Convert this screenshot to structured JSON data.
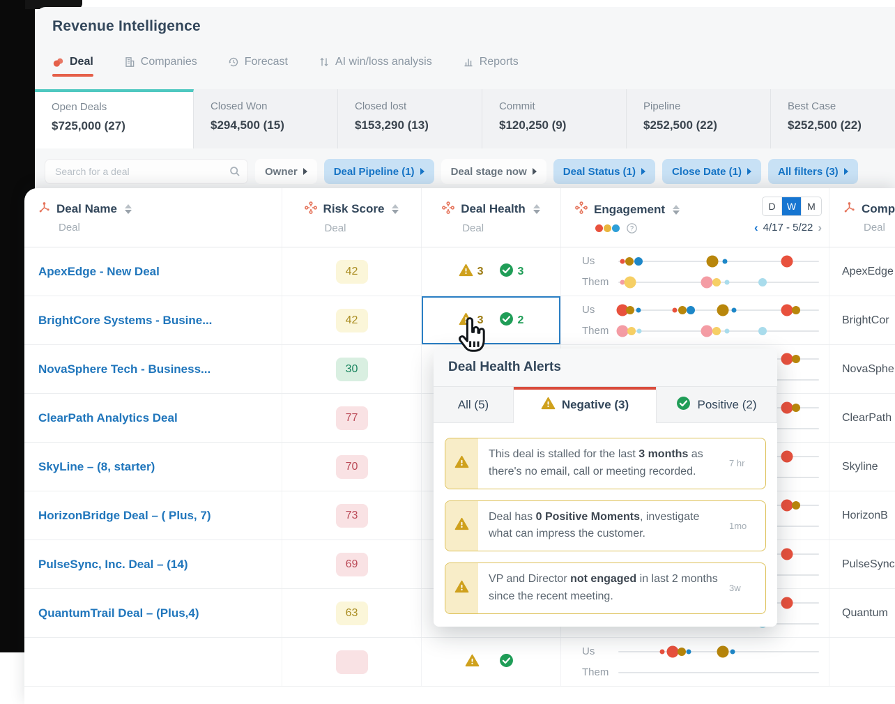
{
  "window": {
    "title": "Revenue Intelligence"
  },
  "nav": {
    "tabs": [
      {
        "label": "Deal",
        "icon": "deal-icon",
        "active": true
      },
      {
        "label": "Companies",
        "icon": "companies-icon",
        "active": false
      },
      {
        "label": "Forecast",
        "icon": "forecast-icon",
        "active": false
      },
      {
        "label": "AI win/loss analysis",
        "icon": "ai-analysis-icon",
        "active": false
      },
      {
        "label": "Reports",
        "icon": "reports-icon",
        "active": false
      }
    ]
  },
  "summary_cards": [
    {
      "label": "Open Deals",
      "value": "$725,000 (27)",
      "active": true
    },
    {
      "label": "Closed Won",
      "value": "$294,500 (15)",
      "active": false
    },
    {
      "label": "Closed lost",
      "value": "$153,290 (13)",
      "active": false
    },
    {
      "label": "Commit",
      "value": "$120,250 (9)",
      "active": false
    },
    {
      "label": "Pipeline",
      "value": "$252,500 (22)",
      "active": false
    },
    {
      "label": "Best Case",
      "value": "$252,500 (22)",
      "active": false
    }
  ],
  "filters": {
    "search_placeholder": "Search for a deal",
    "chips": [
      {
        "label": "Owner",
        "active": false
      },
      {
        "label": "Deal Pipeline (1)",
        "active": true
      },
      {
        "label": "Deal stage now",
        "active": false
      },
      {
        "label": "Deal Status (1)",
        "active": true
      },
      {
        "label": "Close Date (1)",
        "active": true
      },
      {
        "label": "All filters (3)",
        "active": true
      }
    ]
  },
  "table": {
    "columns": [
      {
        "title": "Deal Name",
        "sub": "Deal",
        "icon": "sprocket-icon"
      },
      {
        "title": "Risk Score",
        "sub": "Deal",
        "icon": "node-plus-icon"
      },
      {
        "title": "Deal Health",
        "sub": "Deal",
        "icon": "node-plus-icon"
      },
      {
        "title": "Engagement",
        "icon": "node-plus-icon"
      },
      {
        "title": "Comp",
        "sub": "Deal",
        "icon": "sprocket-icon"
      }
    ],
    "engagement": {
      "view_toggle": [
        "D",
        "W",
        "M"
      ],
      "view_active": "W",
      "date_range": "4/17 - 5/22",
      "us_label": "Us",
      "them_label": "Them"
    },
    "rows": [
      {
        "name": "ApexEdge - New Deal",
        "risk": {
          "value": "42",
          "level": "yellow"
        },
        "health": {
          "neg": "3",
          "pos": "3",
          "selected": false
        },
        "company": "ApexEdge",
        "us": [
          [
            0.02,
            "red",
            "s"
          ],
          [
            0.055,
            "olive",
            "m"
          ],
          [
            0.1,
            "blue",
            "m"
          ],
          [
            0.47,
            "olive",
            "l"
          ],
          [
            0.53,
            "blue",
            "s"
          ],
          [
            0.84,
            "red",
            "l"
          ]
        ],
        "them": [
          [
            0.02,
            "pink",
            "s"
          ],
          [
            0.06,
            "yellow",
            "l"
          ],
          [
            0.44,
            "pink",
            "l"
          ],
          [
            0.49,
            "yellow",
            "m"
          ],
          [
            0.54,
            "lightblue",
            "s"
          ],
          [
            0.72,
            "lightblue",
            "m"
          ]
        ]
      },
      {
        "name": "BrightCore Systems - Busine...",
        "risk": {
          "value": "42",
          "level": "yellow"
        },
        "health": {
          "neg": "3",
          "pos": "2",
          "selected": true
        },
        "company": "BrightCor",
        "us": [
          [
            0.02,
            "red",
            "l"
          ],
          [
            0.06,
            "olive",
            "m"
          ],
          [
            0.1,
            "blue",
            "s"
          ],
          [
            0.28,
            "red",
            "s"
          ],
          [
            0.32,
            "olive",
            "m"
          ],
          [
            0.36,
            "blue",
            "m"
          ],
          [
            0.52,
            "olive",
            "l"
          ],
          [
            0.575,
            "blue",
            "s"
          ],
          [
            0.84,
            "red",
            "l"
          ],
          [
            0.885,
            "olive",
            "m"
          ]
        ],
        "them": [
          [
            0.02,
            "pink",
            "l"
          ],
          [
            0.065,
            "yellow",
            "m"
          ],
          [
            0.105,
            "lightblue",
            "s"
          ],
          [
            0.44,
            "pink",
            "l"
          ],
          [
            0.49,
            "yellow",
            "m"
          ],
          [
            0.54,
            "lightblue",
            "s"
          ],
          [
            0.72,
            "lightblue",
            "m"
          ]
        ]
      },
      {
        "name": "NovaSphere Tech - Business...",
        "risk": {
          "value": "30",
          "level": "green"
        },
        "health": null,
        "company": "NovaSphe",
        "us": [
          [
            0.84,
            "red",
            "l"
          ],
          [
            0.885,
            "olive",
            "m"
          ]
        ],
        "them": []
      },
      {
        "name": "ClearPath Analytics Deal",
        "risk": {
          "value": "77",
          "level": "red"
        },
        "health": null,
        "company": "ClearPath",
        "us": [
          [
            0.84,
            "red",
            "l"
          ],
          [
            0.885,
            "olive",
            "m"
          ]
        ],
        "them": []
      },
      {
        "name": "SkyLine – (8, starter)",
        "risk": {
          "value": "70",
          "level": "red"
        },
        "health": null,
        "company": "Skyline",
        "us": [
          [
            0.84,
            "red",
            "l"
          ]
        ],
        "them": []
      },
      {
        "name": "HorizonBridge Deal – ( Plus, 7)",
        "risk": {
          "value": "73",
          "level": "red"
        },
        "health": null,
        "company": "HorizonB",
        "us": [
          [
            0.84,
            "red",
            "l"
          ],
          [
            0.885,
            "olive",
            "m"
          ]
        ],
        "them": []
      },
      {
        "name": "PulseSync, Inc. Deal – (14)",
        "risk": {
          "value": "69",
          "level": "red"
        },
        "health": null,
        "company": "PulseSync",
        "us": [
          [
            0.84,
            "red",
            "l"
          ]
        ],
        "them": []
      },
      {
        "name": "QuantumTrail Deal – (Plus,4)",
        "risk": {
          "value": "63",
          "level": "yellow"
        },
        "health": null,
        "company": "Quantum",
        "us": [
          [
            0.84,
            "red",
            "l"
          ]
        ],
        "them": [
          [
            0.72,
            "lightblue",
            "m"
          ]
        ]
      },
      {
        "name": "",
        "risk": {
          "value": "",
          "level": "red"
        },
        "health": {
          "neg": "",
          "pos": "",
          "selected": false
        },
        "company": "",
        "us": [
          [
            0.27,
            "red",
            "l"
          ],
          [
            0.315,
            "olive",
            "m"
          ],
          [
            0.35,
            "blue",
            "s"
          ],
          [
            0.22,
            "red",
            "s"
          ],
          [
            0.52,
            "olive",
            "l"
          ],
          [
            0.57,
            "blue",
            "s"
          ]
        ],
        "them": []
      }
    ]
  },
  "popup": {
    "title": "Deal Health Alerts",
    "tabs": [
      {
        "label": "All (5)",
        "icon": null,
        "active": false
      },
      {
        "label": "Negative (3)",
        "icon": "warning-icon",
        "active": true
      },
      {
        "label": "Positive (2)",
        "icon": "check-icon",
        "active": false
      }
    ],
    "alerts": [
      {
        "segments": [
          {
            "t": "This deal is stalled for the last ",
            "b": false
          },
          {
            "t": "3 months",
            "b": true
          },
          {
            "t": " as there's no email, call or meeting recorded.",
            "b": false
          }
        ],
        "time": "7 hr"
      },
      {
        "segments": [
          {
            "t": "Deal has ",
            "b": false
          },
          {
            "t": "0 Positive Moments",
            "b": true
          },
          {
            "t": ", investigate what can impress the customer.",
            "b": false
          }
        ],
        "time": "1mo"
      },
      {
        "segments": [
          {
            "t": "VP and Director ",
            "b": false
          },
          {
            "t": "not engaged",
            "b": true
          },
          {
            "t": " in last 2 months since the recent meeting.",
            "b": false
          }
        ],
        "time": "3w"
      }
    ]
  },
  "colors": {
    "accent": "#e5604a",
    "accent_deep": "#d94c3d",
    "teal": "#4ec8c0",
    "link": "#2076bc",
    "text_dark": "#33475b",
    "text_gray": "#8b97a3",
    "chip_active_bg": "#c8e1f5",
    "chip_active_text": "#1674c6",
    "selected_cell": "#2b7fc4",
    "dwm_active": "#1675d1",
    "warning": "#cfa11d",
    "positive": "#1f9d57",
    "risk_yellow_bg": "#fbf6d9",
    "risk_yellow_text": "#a98c20",
    "risk_green_bg": "#d9efe1",
    "risk_green_text": "#18845e",
    "risk_red_bg": "#f9e2e4",
    "risk_red_text": "#bb4a57",
    "dot_red": "#e8513d",
    "dot_olive": "#b8860b",
    "dot_blue": "#1d87c8",
    "dot_pink": "#f49ca4",
    "dot_yellow": "#f6cf65",
    "dot_lightblue": "#a9dcec",
    "legend_yellow": "#e9b53d",
    "legend_blue": "#2d9fd8",
    "alert_border": "#ddc158",
    "alert_stripe": "#f8edc8"
  }
}
